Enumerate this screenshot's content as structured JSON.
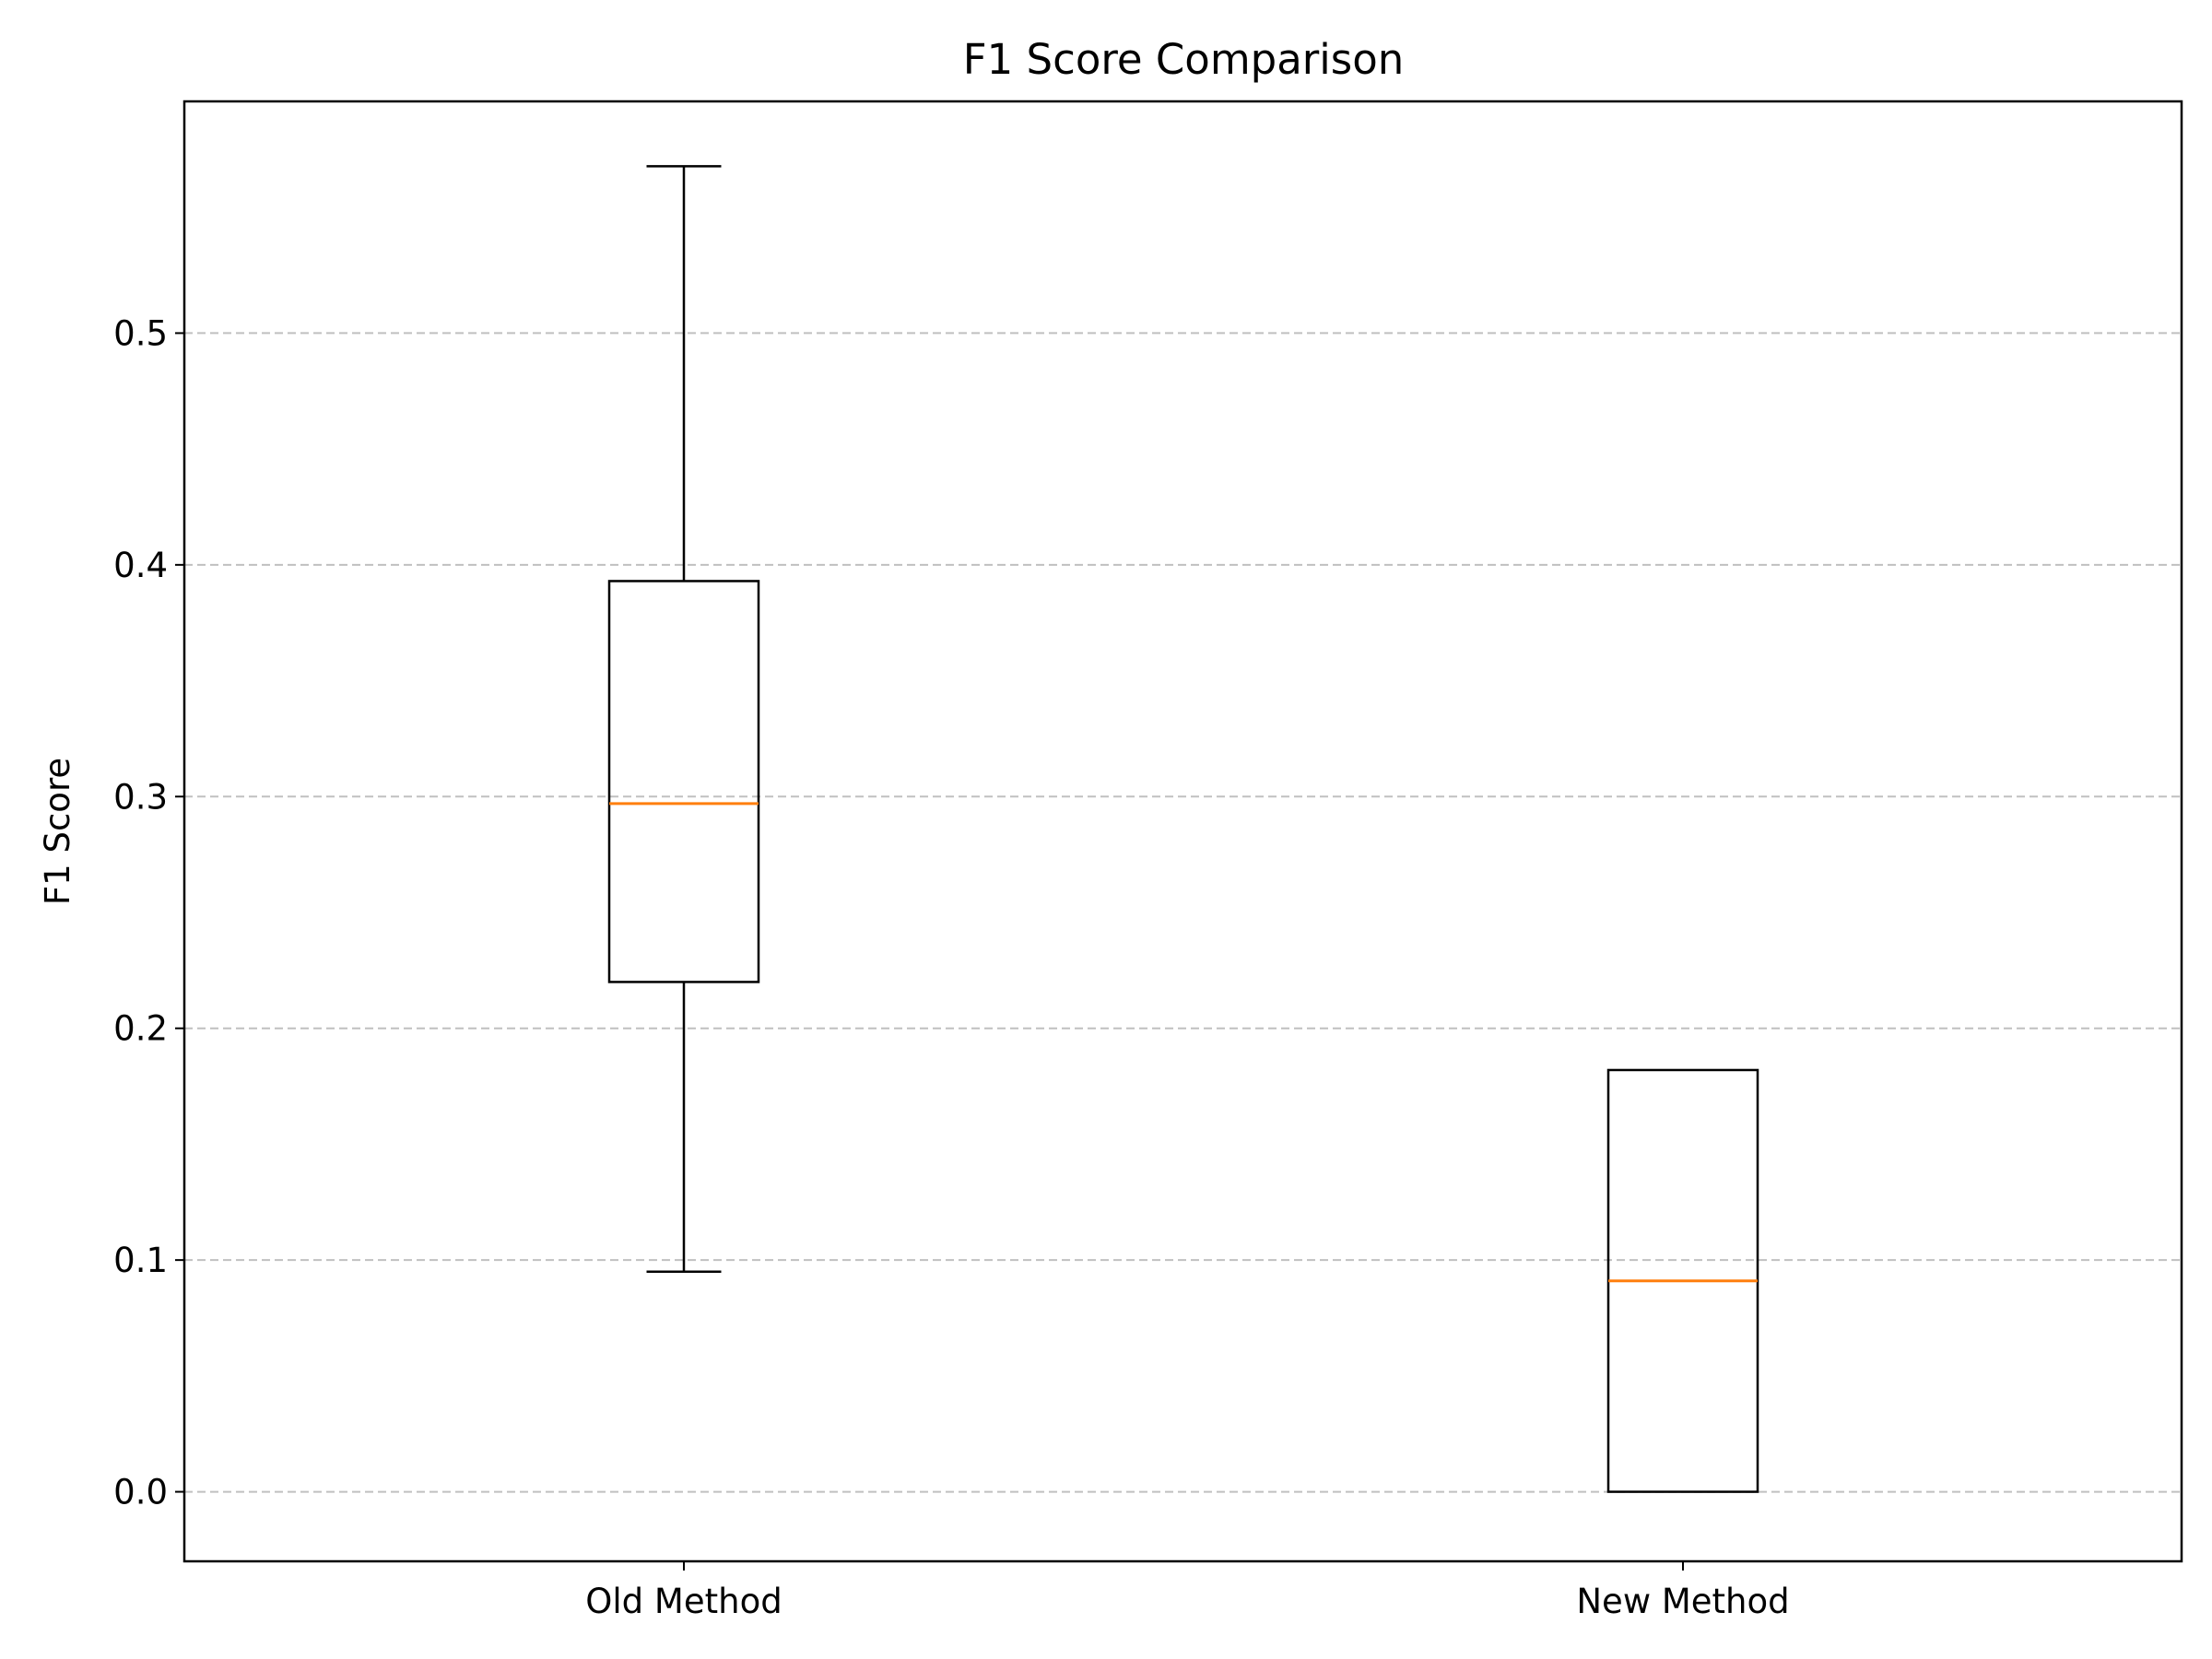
{
  "chart_data": {
    "type": "box",
    "title": "F1 Score Comparison",
    "xlabel": "",
    "ylabel": "F1 Score",
    "ylim": [
      -0.03,
      0.6
    ],
    "yticks": [
      0.0,
      0.1,
      0.2,
      0.3,
      0.4,
      0.5
    ],
    "ytick_labels": [
      "0.0",
      "0.1",
      "0.2",
      "0.3",
      "0.4",
      "0.5"
    ],
    "grid": "y-dashed",
    "categories": [
      "Old Method",
      "New Method"
    ],
    "boxes": [
      {
        "category": "Old Method",
        "whisker_low": 0.095,
        "q1": 0.22,
        "median": 0.297,
        "q3": 0.393,
        "whisker_high": 0.572
      },
      {
        "category": "New Method",
        "whisker_low": 0.0,
        "q1": 0.0,
        "median": 0.091,
        "q3": 0.182,
        "whisker_high": 0.182
      }
    ],
    "colors": {
      "box": "#000000",
      "median": "#ff7f0e",
      "grid": "#c0c0c0"
    }
  }
}
